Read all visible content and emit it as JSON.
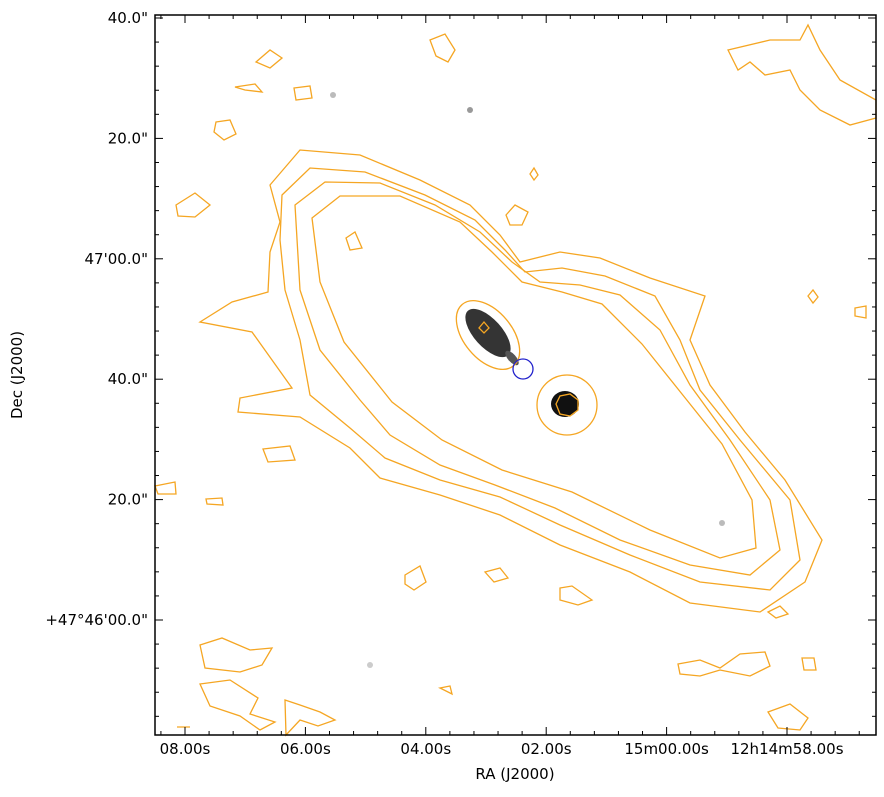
{
  "axes": {
    "x_label": "RA (J2000)",
    "y_label": "Dec (J2000)",
    "x_ticks": [
      "08.00s",
      "06.00s",
      "04.00s",
      "02.00s",
      "15m00.00s",
      "12h14m58.00s"
    ],
    "y_ticks": [
      "40.0\"",
      "20.0\"",
      "47'00.0\"",
      "40.0\"",
      "20.0\"",
      "+47°46'00.0\""
    ]
  }
}
